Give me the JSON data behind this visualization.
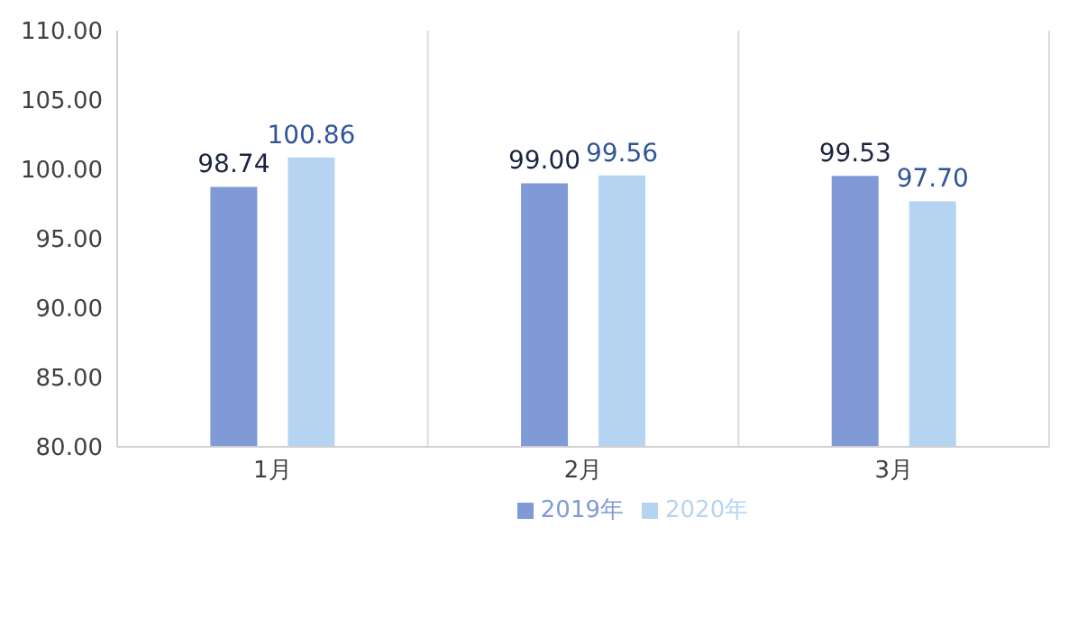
{
  "chart_data": {
    "type": "bar",
    "categories": [
      "1月",
      "2月",
      "3月"
    ],
    "series": [
      {
        "name": "2019年",
        "color": "#7f9ad6",
        "values": [
          98.74,
          99.0,
          99.53
        ],
        "value_labels": [
          "98.74",
          "99.00",
          "99.53"
        ]
      },
      {
        "name": "2020年",
        "color": "#b5d4f1",
        "values": [
          100.86,
          99.56,
          97.7
        ],
        "value_labels": [
          "100.86",
          "99.56",
          "97.70"
        ]
      }
    ],
    "ylim": [
      80,
      110
    ],
    "yticks": [
      {
        "value": 80,
        "label": "80.00"
      },
      {
        "value": 85,
        "label": "85.00"
      },
      {
        "value": 90,
        "label": "90.00"
      },
      {
        "value": 95,
        "label": "95.00"
      },
      {
        "value": 100,
        "label": "100.00"
      },
      {
        "value": 105,
        "label": "105.00"
      },
      {
        "value": 110,
        "label": "110.00"
      }
    ],
    "grid": "x",
    "legend": "bottom"
  }
}
